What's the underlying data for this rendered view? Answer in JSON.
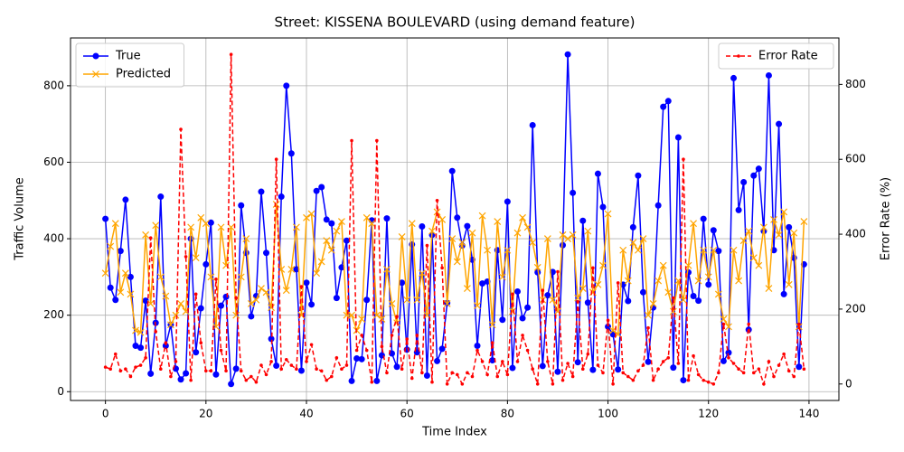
{
  "chart_data": {
    "type": "line",
    "title": "Street: KISSENA BOULEVARD (using demand feature)",
    "xlabel": "Time Index",
    "ylabel": "Traffic Volume",
    "y2label": "Error Rate (%)",
    "x": [
      0,
      1,
      2,
      3,
      4,
      5,
      6,
      7,
      8,
      9,
      10,
      11,
      12,
      13,
      14,
      15,
      16,
      17,
      18,
      19,
      20,
      21,
      22,
      23,
      24,
      25,
      26,
      27,
      28,
      29,
      30,
      31,
      32,
      33,
      34,
      35,
      36,
      37,
      38,
      39,
      40,
      41,
      42,
      43,
      44,
      45,
      46,
      47,
      48,
      49,
      50,
      51,
      52,
      53,
      54,
      55,
      56,
      57,
      58,
      59,
      60,
      61,
      62,
      63,
      64,
      65,
      66,
      67,
      68,
      69,
      70,
      71,
      72,
      73,
      74,
      75,
      76,
      77,
      78,
      79,
      80,
      81,
      82,
      83,
      84,
      85,
      86,
      87,
      88,
      89,
      90,
      91,
      92,
      93,
      94,
      95,
      96,
      97,
      98,
      99,
      100,
      101,
      102,
      103,
      104,
      105,
      106,
      107,
      108,
      109,
      110,
      111,
      112,
      113,
      114,
      115,
      116,
      117,
      118,
      119,
      120,
      121,
      122,
      123,
      124,
      125,
      126,
      127,
      128,
      129,
      130,
      131,
      132,
      133,
      134,
      135,
      136,
      137,
      138,
      139
    ],
    "series": [
      {
        "name": "True",
        "color": "#0000ff",
        "marker": "o",
        "linestyle": "solid",
        "values": [
          452,
          272,
          240,
          368,
          502,
          300,
          120,
          115,
          238,
          47,
          180,
          510,
          120,
          175,
          60,
          32,
          48,
          400,
          103,
          218,
          333,
          442,
          45,
          225,
          248,
          20,
          60,
          487,
          363,
          197,
          250,
          523,
          363,
          138,
          68,
          510,
          800,
          623,
          320,
          55,
          285,
          228,
          525,
          535,
          450,
          440,
          245,
          325,
          395,
          28,
          87,
          85,
          240,
          448,
          28,
          95,
          453,
          100,
          65,
          285,
          110,
          385,
          103,
          432,
          42,
          410,
          80,
          112,
          232,
          577,
          455,
          382,
          433,
          345,
          120,
          283,
          288,
          82,
          370,
          188,
          497,
          62,
          262,
          192,
          220,
          697,
          312,
          67,
          252,
          313,
          52,
          383,
          882,
          520,
          77,
          447,
          233,
          57,
          570,
          483,
          170,
          150,
          58,
          280,
          237,
          430,
          565,
          260,
          78,
          220,
          487,
          745,
          760,
          63,
          665,
          30,
          312,
          250,
          238,
          452,
          280,
          422,
          368,
          80,
          102,
          820,
          475,
          548,
          162,
          565,
          583,
          420,
          827,
          370,
          700,
          255,
          430,
          350,
          65,
          333
        ]
      },
      {
        "name": "Predicted",
        "color": "#ffa500",
        "marker": "x",
        "linestyle": "solid",
        "values": [
          310,
          380,
          440,
          260,
          310,
          255,
          160,
          155,
          410,
          230,
          435,
          300,
          250,
          175,
          200,
          230,
          210,
          430,
          350,
          455,
          440,
          300,
          170,
          430,
          330,
          430,
          200,
          300,
          400,
          230,
          240,
          270,
          260,
          220,
          490,
          320,
          265,
          320,
          430,
          200,
          455,
          465,
          310,
          340,
          395,
          370,
          420,
          445,
          200,
          200,
          160,
          190,
          455,
          440,
          200,
          190,
          320,
          230,
          180,
          405,
          240,
          440,
          240,
          310,
          200,
          420,
          470,
          450,
          230,
          400,
          340,
          390,
          270,
          415,
          225,
          460,
          370,
          175,
          445,
          300,
          370,
          210,
          415,
          455,
          430,
          390,
          325,
          240,
          400,
          240,
          210,
          410,
          400,
          410,
          245,
          270,
          420,
          260,
          280,
          330,
          465,
          160,
          150,
          370,
          290,
          390,
          370,
          400,
          200,
          230,
          290,
          330,
          260,
          210,
          290,
          240,
          330,
          440,
          290,
          370,
          300,
          370,
          255,
          190,
          170,
          370,
          290,
          395,
          420,
          350,
          330,
          430,
          270,
          450,
          410,
          470,
          280,
          415,
          170,
          445
        ]
      },
      {
        "name": "Error Rate",
        "color": "#ff0000",
        "marker": ".",
        "linestyle": "dashed",
        "axis": "y2",
        "values": [
          45,
          40,
          80,
          35,
          40,
          20,
          45,
          50,
          70,
          390,
          140,
          40,
          110,
          20,
          60,
          680,
          340,
          10,
          240,
          110,
          35,
          35,
          280,
          90,
          35,
          880,
          230,
          35,
          10,
          20,
          5,
          50,
          25,
          60,
          600,
          40,
          65,
          50,
          40,
          260,
          60,
          105,
          40,
          35,
          10,
          20,
          70,
          40,
          50,
          650,
          90,
          130,
          90,
          5,
          650,
          100,
          30,
          130,
          180,
          40,
          120,
          15,
          130,
          30,
          370,
          5,
          490,
          310,
          0,
          30,
          25,
          0,
          30,
          20,
          90,
          60,
          25,
          110,
          20,
          60,
          25,
          240,
          60,
          130,
          90,
          40,
          0,
          250,
          60,
          0,
          300,
          10,
          55,
          20,
          220,
          40,
          80,
          310,
          50,
          30,
          170,
          0,
          270,
          30,
          20,
          10,
          35,
          50,
          150,
          10,
          40,
          60,
          70,
          230,
          55,
          600,
          10,
          75,
          25,
          10,
          5,
          0,
          30,
          160,
          70,
          55,
          40,
          30,
          160,
          30,
          40,
          0,
          60,
          20,
          50,
          80,
          35,
          20,
          160,
          40
        ]
      }
    ],
    "xlim": [
      -6.95,
      145.95
    ],
    "xticks": [
      0,
      20,
      40,
      60,
      80,
      100,
      120,
      140
    ],
    "ylim": [
      -23,
      925
    ],
    "yticks": [
      0,
      200,
      400,
      600,
      800
    ],
    "y2lim": [
      -44,
      924
    ],
    "y2ticks": [
      0,
      200,
      400,
      600,
      800
    ],
    "grid": true,
    "legend_loc": "upper left",
    "legend2_loc": "upper right"
  }
}
